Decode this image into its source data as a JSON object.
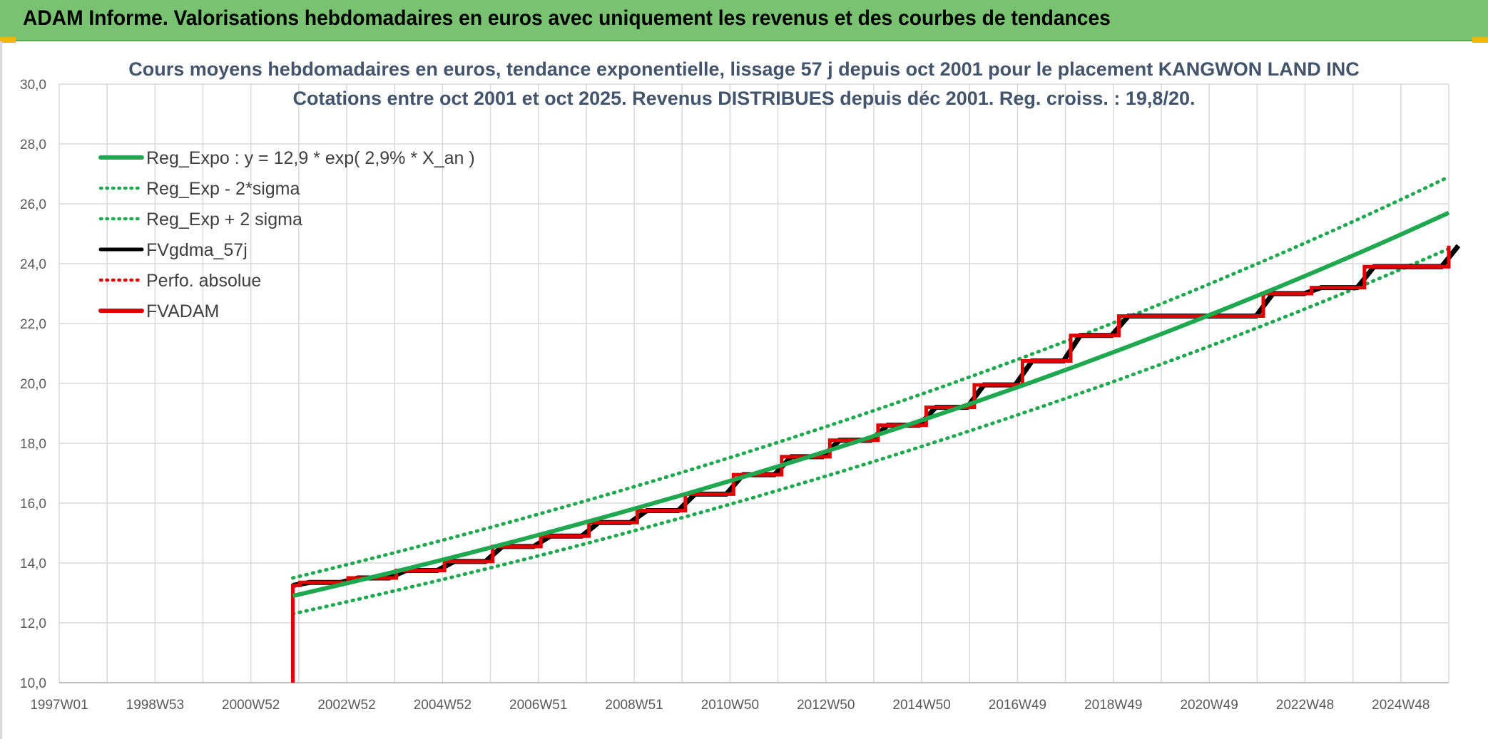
{
  "banner": {
    "title": "ADAM Informe. Valorisations hebdomadaires en euros avec uniquement les revenus et des courbes de tendances"
  },
  "colors": {
    "banner_bg": "#79c272",
    "trend_green": "#1fa84f",
    "fv_black": "#000000",
    "adam_red": "#e00000",
    "grid": "#d9d9d9"
  },
  "chart_data": {
    "type": "line",
    "title": "Cours moyens hebdomadaires en euros, tendance exponentielle, lissage 57 j depuis oct 2001 pour le placement KANGWON LAND INC",
    "subtitle": "Cotations entre oct 2001 et oct 2025. Revenus DISTRIBUES depuis déc 2001. Reg. croiss. : 19,8/20.",
    "xlabel": "",
    "ylabel": "",
    "ylim": [
      10,
      30
    ],
    "y_ticks": [
      "10,0",
      "12,0",
      "14,0",
      "16,0",
      "18,0",
      "20,0",
      "22,0",
      "24,0",
      "26,0",
      "28,0",
      "30,0"
    ],
    "x_ticks": [
      "1997W01",
      "1998W53",
      "2000W52",
      "2002W52",
      "2004W52",
      "2006W51",
      "2008W51",
      "2010W50",
      "2012W50",
      "2014W50",
      "2016W49",
      "2018W49",
      "2020W49",
      "2022W48",
      "2024W48"
    ],
    "x_range_years": [
      1997.0,
      2025.85
    ],
    "grid": true,
    "legend_position": "top-left",
    "legend": [
      {
        "label": "Reg_Expo : y = 12,9 * exp( 2,9% *  X_an )",
        "style": "solid-thick",
        "color": "#1fa84f"
      },
      {
        "label": "Reg_Exp - 2*sigma",
        "style": "dotted",
        "color": "#1fa84f"
      },
      {
        "label": "Reg_Exp + 2 sigma",
        "style": "dotted",
        "color": "#1fa84f"
      },
      {
        "label": "FVgdma_57j",
        "style": "solid",
        "color": "#000000"
      },
      {
        "label": "Perfo. absolue",
        "style": "dotted",
        "color": "#e00000"
      },
      {
        "label": "FVADAM",
        "style": "solid-thick",
        "color": "#e00000"
      }
    ],
    "series": [
      {
        "name": "Reg_Expo : y = 12,9 * exp( 2,9% *  X_an )",
        "x": [
          2001.85,
          2025.85
        ],
        "y": [
          12.9,
          25.7
        ],
        "rate": 0.029
      },
      {
        "name": "Reg_Exp - 2*sigma",
        "x": [
          2001.85,
          2025.85
        ],
        "y": [
          12.3,
          24.5
        ]
      },
      {
        "name": "Reg_Exp + 2 sigma",
        "x": [
          2001.85,
          2025.85
        ],
        "y": [
          13.5,
          26.9
        ]
      },
      {
        "name": "FVADAM",
        "x": [
          2001.85,
          2001.85,
          2002.0,
          2003.0,
          2004.0,
          2005.0,
          2006.0,
          2007.0,
          2008.0,
          2009.0,
          2010.0,
          2011.0,
          2012.0,
          2013.0,
          2014.0,
          2015.0,
          2016.0,
          2017.0,
          2018.0,
          2019.0,
          2022.0,
          2023.0,
          2024.1,
          2025.85
        ],
        "y": [
          10.0,
          13.25,
          13.35,
          13.5,
          13.75,
          14.05,
          14.55,
          14.9,
          15.35,
          15.75,
          16.3,
          16.95,
          17.55,
          18.1,
          18.6,
          19.2,
          19.95,
          20.75,
          21.6,
          22.25,
          23.0,
          23.2,
          23.9,
          24.6
        ],
        "step": true
      },
      {
        "name": "FVgdma_57j",
        "x": [
          2001.85,
          2025.85
        ],
        "y": [
          13.25,
          24.6
        ],
        "smoothed_of": "FVADAM"
      }
    ]
  }
}
